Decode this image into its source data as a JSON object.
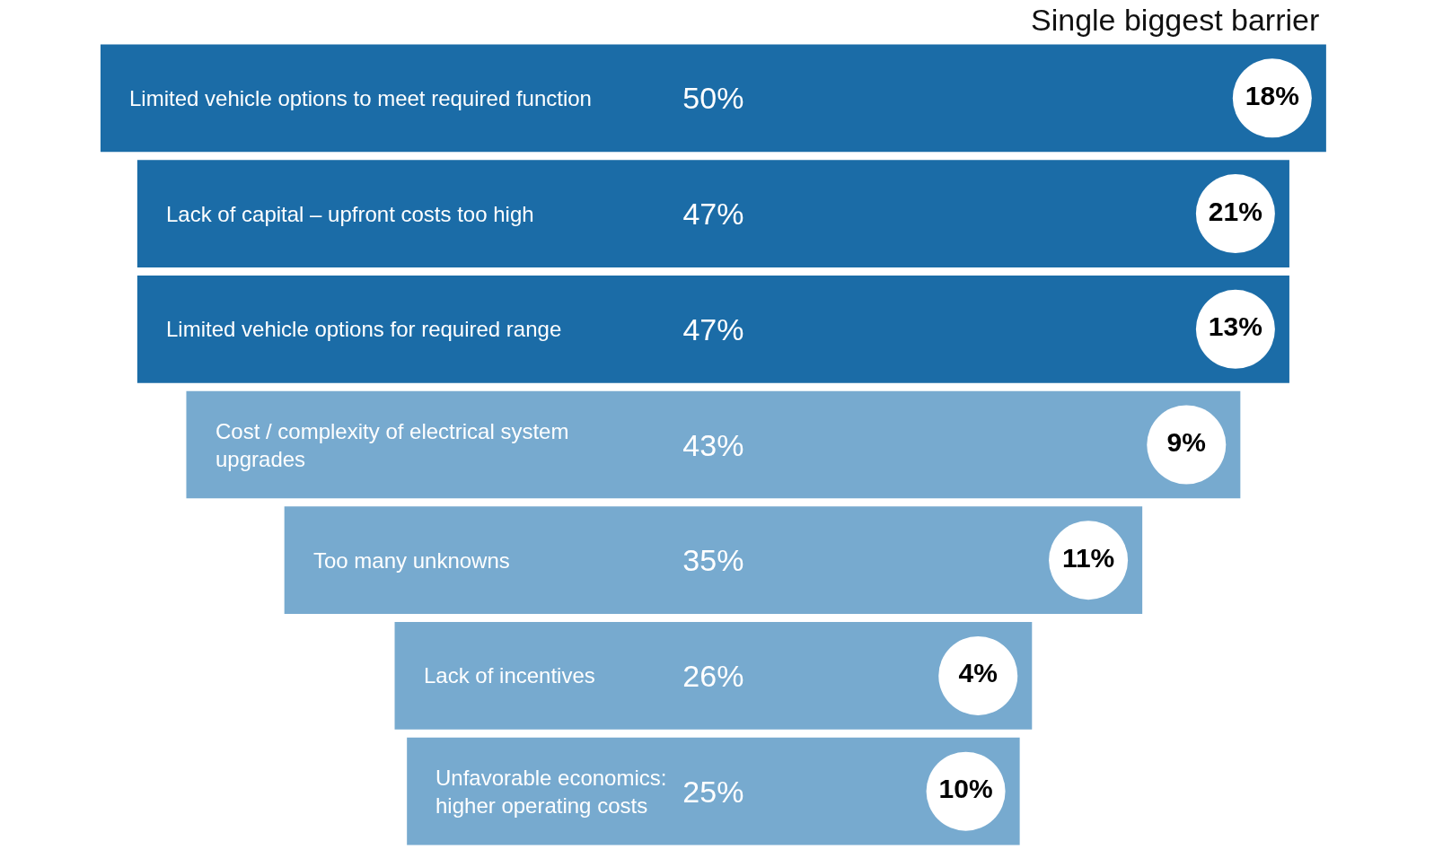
{
  "chart_data": {
    "type": "other",
    "categories": [
      "Limited vehicle options to meet required function",
      "Lack of capital – upfront costs too high",
      "Limited vehicle options for required range",
      "Cost / complexity of electrical system upgrades",
      "Too many unknowns",
      "Lack of incentives",
      "Unfavorable economics: higher operating costs"
    ],
    "series": [
      {
        "values": [
          50,
          47,
          47,
          43,
          35,
          26,
          25
        ],
        "value_labels": [
          "50%",
          "47%",
          "47%",
          "43%",
          "35%",
          "26%",
          "25%"
        ],
        "colors": [
          "#1b6ca7",
          "#1b6ca7",
          "#1b6ca7",
          "#77aacf",
          "#77aacf",
          "#77aacf",
          "#77aacf"
        ]
      },
      {
        "name": "Single biggest barrier",
        "values": [
          18,
          21,
          13,
          9,
          11,
          4,
          10
        ],
        "value_labels": [
          "18%",
          "21%",
          "13%",
          "9%",
          "11%",
          "4%",
          "10%"
        ],
        "color": "#ffffff"
      }
    ]
  }
}
